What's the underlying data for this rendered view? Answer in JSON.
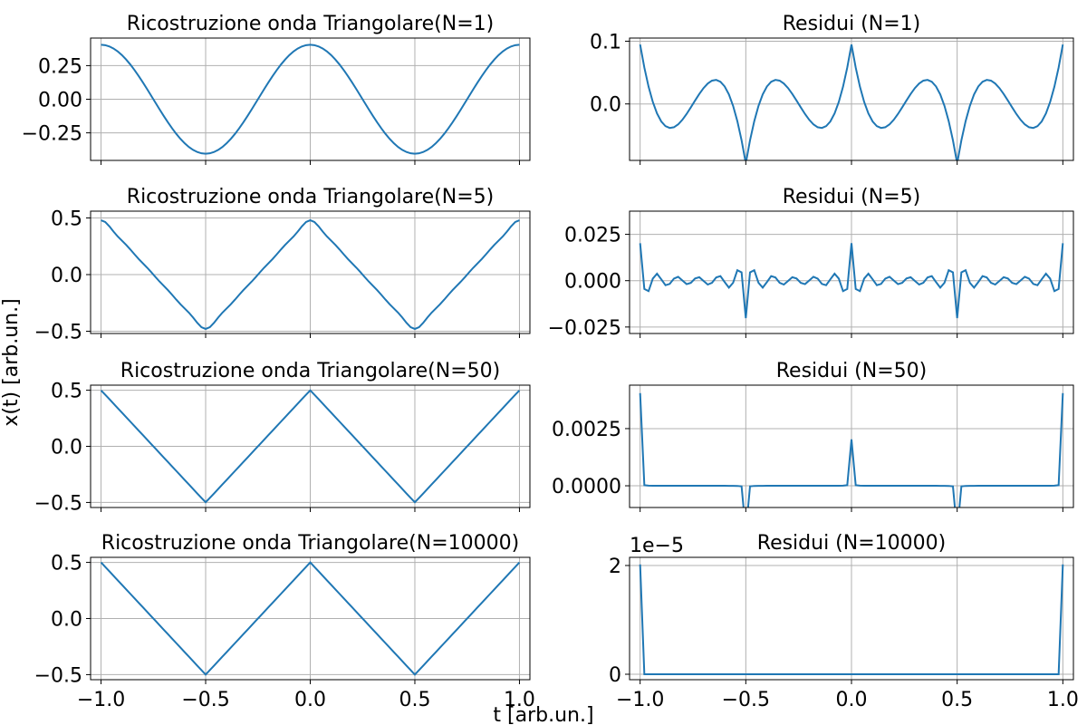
{
  "figure": {
    "xlabel": "t  [arb.un.]",
    "ylabel": "x(t) [arb.un.]"
  },
  "chart_data": [
    {
      "type": "line",
      "title": "Ricostruzione onda Triangolare(N=1)",
      "kind": "recon",
      "N": 1,
      "xlim": [
        -1.05,
        1.05
      ],
      "ylim": [
        -0.455,
        0.455
      ],
      "yticks": [
        -0.25,
        0,
        0.25
      ],
      "ytick_labels": [
        "−0.25",
        "0.00",
        "0.25"
      ],
      "xticks": [
        -1.0,
        -0.5,
        0.0,
        0.5,
        1.0
      ],
      "xtick_labels": [],
      "grid": true,
      "color": "#1f77b4"
    },
    {
      "type": "line",
      "title": "Residui (N=1)",
      "kind": "resid",
      "N": 1,
      "xlim": [
        -1.05,
        1.05
      ],
      "ylim": [
        -0.09,
        0.105
      ],
      "yticks": [
        0,
        0.1
      ],
      "ytick_labels": [
        "0.0",
        "0.1"
      ],
      "xticks": [
        -1.0,
        -0.5,
        0.0,
        0.5,
        1.0
      ],
      "xtick_labels": [],
      "grid": true,
      "color": "#1f77b4"
    },
    {
      "type": "line",
      "title": "Ricostruzione onda Triangolare(N=5)",
      "kind": "recon",
      "N": 5,
      "xlim": [
        -1.05,
        1.05
      ],
      "ylim": [
        -0.52,
        0.56
      ],
      "yticks": [
        -0.5,
        0,
        0.5
      ],
      "ytick_labels": [
        "−0.5",
        "0.0",
        "0.5"
      ],
      "xticks": [
        -1.0,
        -0.5,
        0.0,
        0.5,
        1.0
      ],
      "xtick_labels": [],
      "grid": true,
      "color": "#1f77b4"
    },
    {
      "type": "line",
      "title": "Residui (N=5)",
      "kind": "resid",
      "N": 5,
      "xlim": [
        -1.05,
        1.05
      ],
      "ylim": [
        -0.0285,
        0.0375
      ],
      "yticks": [
        -0.025,
        0,
        0.025
      ],
      "ytick_labels": [
        "−0.025",
        "0.000",
        "0.025"
      ],
      "xticks": [
        -1.0,
        -0.5,
        0.0,
        0.5,
        1.0
      ],
      "xtick_labels": [],
      "grid": true,
      "color": "#1f77b4"
    },
    {
      "type": "line",
      "title": "Ricostruzione onda Triangolare(N=50)",
      "kind": "recon",
      "N": 50,
      "xlim": [
        -1.05,
        1.05
      ],
      "ylim": [
        -0.545,
        0.545
      ],
      "yticks": [
        -0.5,
        0,
        0.5
      ],
      "ytick_labels": [
        "−0.5",
        "0.0",
        "0.5"
      ],
      "xticks": [
        -1.0,
        -0.5,
        0.0,
        0.5,
        1.0
      ],
      "xtick_labels": [],
      "grid": true,
      "color": "#1f77b4"
    },
    {
      "type": "line",
      "title": "Residui (N=50)",
      "kind": "resid",
      "N": 50,
      "xlim": [
        -1.05,
        1.05
      ],
      "ylim": [
        -0.00095,
        0.0044
      ],
      "yticks": [
        0,
        0.0025
      ],
      "ytick_labels": [
        "0.0000",
        "0.0025"
      ],
      "xticks": [
        -1.0,
        -0.5,
        0.0,
        0.5,
        1.0
      ],
      "xtick_labels": [],
      "grid": true,
      "color": "#1f77b4"
    },
    {
      "type": "line",
      "title": "Ricostruzione onda Triangolare(N=10000)",
      "kind": "recon",
      "N": 10000,
      "xlim": [
        -1.05,
        1.05
      ],
      "ylim": [
        -0.545,
        0.545
      ],
      "yticks": [
        -0.5,
        0,
        0.5
      ],
      "ytick_labels": [
        "−0.5",
        "0.0",
        "0.5"
      ],
      "xticks": [
        -1.0,
        -0.5,
        0.0,
        0.5,
        1.0
      ],
      "xtick_labels": [
        "−1.0",
        "−0.5",
        "0.0",
        "0.5",
        "1.0"
      ],
      "grid": true,
      "color": "#1f77b4"
    },
    {
      "type": "line",
      "title": "Residui (N=10000)",
      "kind": "resid",
      "N": 10000,
      "xlim": [
        -1.05,
        1.05
      ],
      "ylim": [
        -0.1,
        2.15
      ],
      "yticks": [
        0,
        2
      ],
      "ytick_labels": [
        "0",
        "2"
      ],
      "offset_text": "1e−5",
      "xticks": [
        -1.0,
        -0.5,
        0.0,
        0.5,
        1.0
      ],
      "xtick_labels": [
        "−1.0",
        "−0.5",
        "0.0",
        "0.5",
        "1.0"
      ],
      "grid": true,
      "color": "#1f77b4"
    }
  ]
}
